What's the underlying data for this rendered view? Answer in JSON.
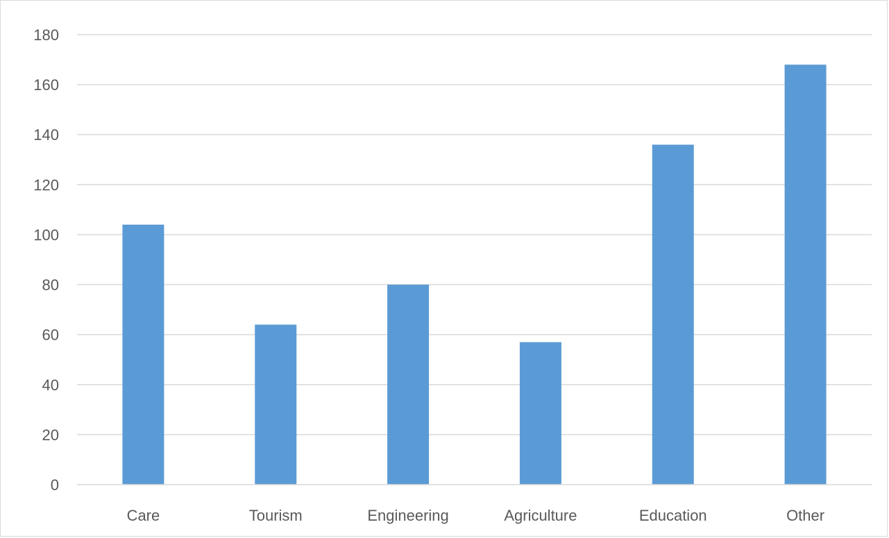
{
  "chart_data": {
    "type": "bar",
    "title": "",
    "xlabel": "",
    "ylabel": "",
    "categories": [
      "Care",
      "Tourism",
      "Engineering",
      "Agriculture",
      "Education",
      "Other"
    ],
    "values": [
      104,
      64,
      80,
      57,
      136,
      168
    ],
    "ylim": [
      0,
      180
    ],
    "yticks": [
      0,
      20,
      40,
      60,
      80,
      100,
      120,
      140,
      160,
      180
    ],
    "grid": true,
    "legend": "none",
    "bar_color": "#5b9bd5"
  }
}
